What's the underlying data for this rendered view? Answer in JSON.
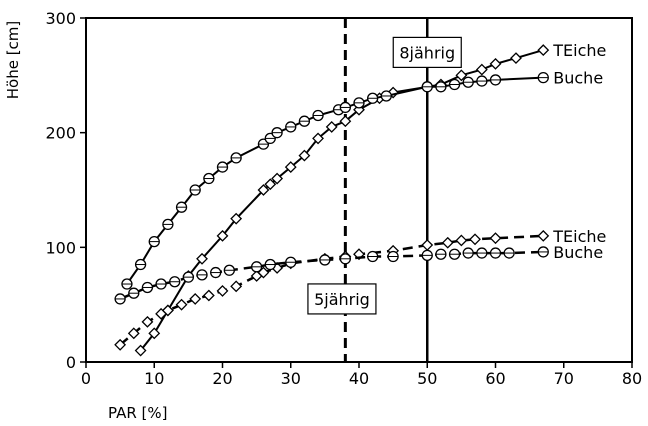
{
  "chart_data": {
    "type": "line",
    "xlabel": "PAR [%]",
    "ylabel": "Höhe [cm]",
    "xlim": [
      0,
      80
    ],
    "ylim": [
      0,
      300
    ],
    "xticks": [
      "0",
      "10",
      "20",
      "30",
      "40",
      "50",
      "60",
      "70",
      "80"
    ],
    "yticks": [
      "0",
      "100",
      "200",
      "300"
    ],
    "grid": false,
    "series": [
      {
        "name": "TEiche",
        "group": "8jährig",
        "style": "solid",
        "marker": "diamond",
        "x": [
          8,
          10,
          12,
          15,
          17,
          20,
          22,
          26,
          27,
          28,
          30,
          32,
          34,
          36,
          38,
          40,
          43,
          45,
          50,
          52,
          55,
          58,
          60,
          63,
          67
        ],
        "y": [
          10,
          25,
          45,
          75,
          90,
          110,
          125,
          150,
          155,
          160,
          170,
          180,
          195,
          205,
          210,
          220,
          230,
          235,
          240,
          242,
          250,
          255,
          260,
          265,
          272
        ],
        "color": "#000000"
      },
      {
        "name": "Buche",
        "group": "8jährig",
        "style": "solid",
        "marker": "circle",
        "x": [
          6,
          8,
          10,
          12,
          14,
          16,
          18,
          20,
          22,
          26,
          27,
          28,
          30,
          32,
          34,
          37,
          38,
          40,
          42,
          44,
          50,
          52,
          54,
          56,
          58,
          60,
          67
        ],
        "y": [
          68,
          85,
          105,
          120,
          135,
          150,
          160,
          170,
          178,
          190,
          195,
          200,
          205,
          210,
          215,
          220,
          222,
          226,
          230,
          232,
          240,
          240,
          242,
          244,
          245,
          246,
          248
        ],
        "color": "#000000"
      },
      {
        "name": "TEiche",
        "group": "5jährig",
        "style": "dashed",
        "marker": "diamond",
        "x": [
          5,
          7,
          9,
          11,
          12,
          14,
          16,
          18,
          20,
          22,
          25,
          26,
          28,
          30,
          35,
          38,
          40,
          45,
          50,
          53,
          55,
          57,
          60,
          67
        ],
        "y": [
          15,
          25,
          35,
          42,
          45,
          50,
          55,
          58,
          62,
          66,
          75,
          78,
          82,
          86,
          90,
          92,
          94,
          97,
          102,
          104,
          106,
          107,
          108,
          110
        ],
        "color": "#000000"
      },
      {
        "name": "Buche",
        "group": "5jährig",
        "style": "dashed",
        "marker": "circle",
        "x": [
          5,
          7,
          9,
          11,
          13,
          15,
          17,
          19,
          21,
          25,
          27,
          30,
          35,
          38,
          42,
          45,
          50,
          52,
          54,
          56,
          58,
          60,
          62,
          67
        ],
        "y": [
          55,
          60,
          65,
          68,
          70,
          74,
          76,
          78,
          80,
          83,
          85,
          87,
          89,
          90,
          92,
          92,
          93,
          94,
          94,
          95,
          95,
          95,
          95,
          96
        ],
        "color": "#000000"
      }
    ],
    "annotations": [
      {
        "name": "label-8jahrig",
        "text": "8jährig",
        "x": 50,
        "y": 270
      },
      {
        "name": "label-5jahrig",
        "text": "5jährig",
        "x": 37.5,
        "y": 55
      }
    ],
    "reference_lines": [
      {
        "name": "vline-5jahrig",
        "x": 38,
        "style": "dashed"
      },
      {
        "name": "vline-8jahrig",
        "x": 50,
        "style": "solid"
      }
    ]
  }
}
